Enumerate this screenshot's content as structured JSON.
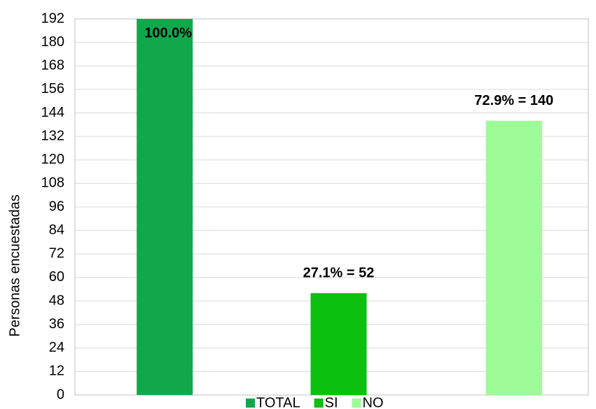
{
  "chart_data": {
    "type": "bar",
    "y_label": "Personas encuestadas",
    "series": [
      {
        "name": "TOTAL",
        "color": "#11a84c",
        "values": [
          192
        ],
        "value_labels": [
          "100.0%"
        ]
      },
      {
        "name": "SI",
        "color": "#0cc010",
        "values": [
          52
        ],
        "value_labels": [
          "27.1% = 52"
        ]
      },
      {
        "name": "NO",
        "color": "#9dfc98",
        "values": [
          140
        ],
        "value_labels": [
          "72.9% = 140"
        ]
      }
    ],
    "ylim": [
      0,
      192
    ],
    "yticks": [
      0,
      12,
      24,
      36,
      48,
      60,
      72,
      84,
      96,
      108,
      120,
      132,
      144,
      156,
      168,
      180,
      192
    ],
    "grid": true,
    "legend": "bottom"
  }
}
